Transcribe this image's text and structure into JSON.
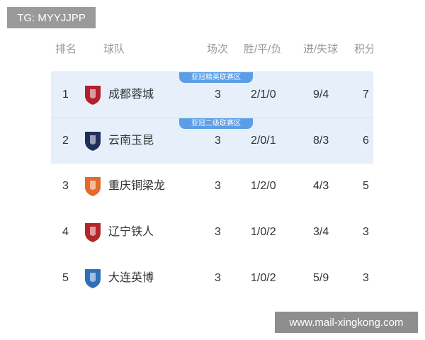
{
  "watermarks": {
    "top_left": "TG: MYYJJPP",
    "bottom_right": "www.mail-xingkong.com"
  },
  "headers": {
    "rank": "排名",
    "team": "球队",
    "played": "场次",
    "wdl": "胜/平/负",
    "goals": "进/失球",
    "points": "积分"
  },
  "rows": [
    {
      "rank": "1",
      "team": "成都蓉城",
      "played": "3",
      "wdl": "2/1/0",
      "goals": "9/4",
      "points": "7",
      "zone": "亚冠精英联赛区",
      "logo": "chengdu-rongcheng-crest",
      "color": "#b21f2d"
    },
    {
      "rank": "2",
      "team": "云南玉昆",
      "played": "3",
      "wdl": "2/0/1",
      "goals": "8/3",
      "points": "6",
      "zone": "亚冠二级联赛区",
      "logo": "yunnan-yukun-crest",
      "color": "#1f2f5a"
    },
    {
      "rank": "3",
      "team": "重庆铜梁龙",
      "played": "3",
      "wdl": "1/2/0",
      "goals": "4/3",
      "points": "5",
      "logo": "chongqing-tongliangloong-crest",
      "color": "#e46a2c"
    },
    {
      "rank": "4",
      "team": "辽宁铁人",
      "played": "3",
      "wdl": "1/0/2",
      "goals": "3/4",
      "points": "3",
      "logo": "liaoning-tieren-crest",
      "color": "#b3262a"
    },
    {
      "rank": "5",
      "team": "大连英博",
      "played": "3",
      "wdl": "1/0/2",
      "goals": "5/9",
      "points": "3",
      "logo": "dalian-yingbo-crest",
      "color": "#2e6fb8"
    }
  ],
  "colors": {
    "highlight": "#e6effa",
    "zone_badge": "#5c9ee6"
  }
}
